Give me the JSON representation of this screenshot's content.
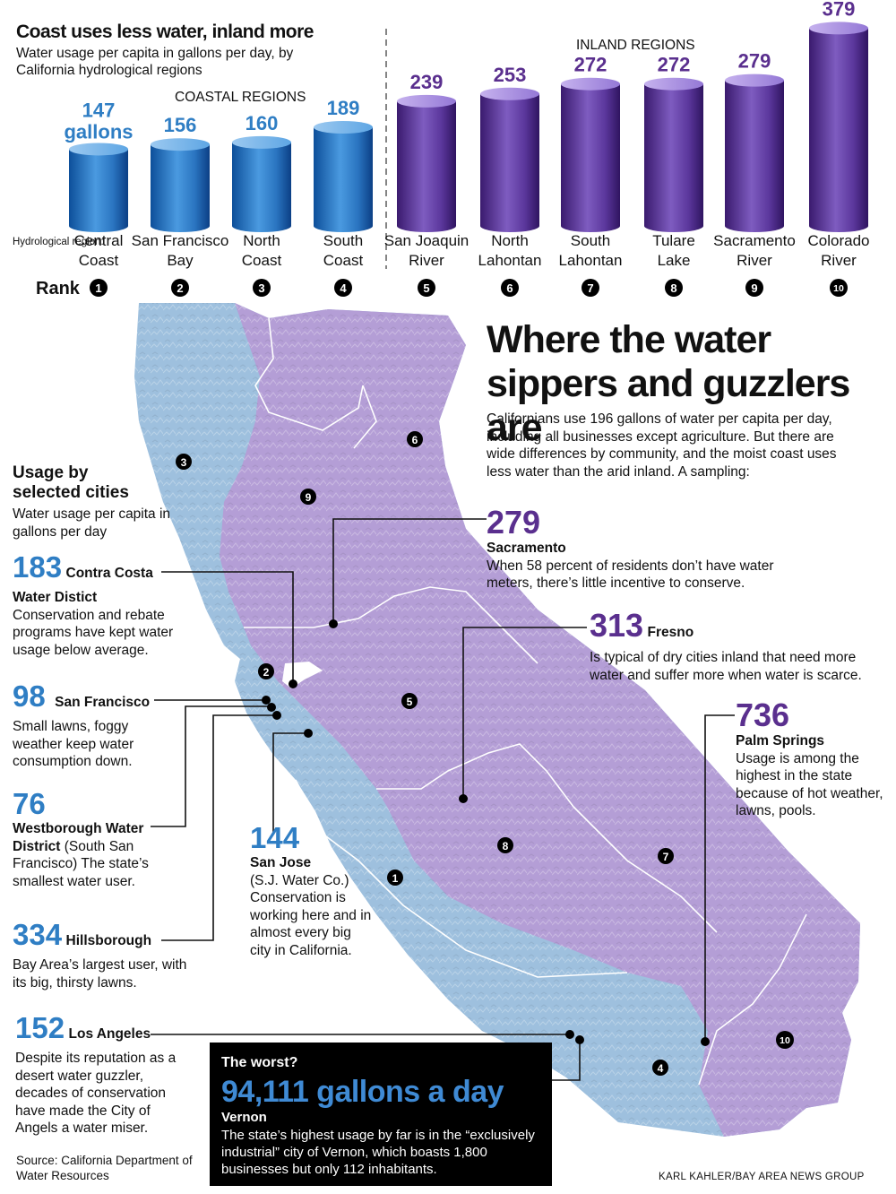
{
  "chart": {
    "title": "Coast uses less water, inland more",
    "subtitle": "Water usage per capita in gallons per day, by California hydrological regions",
    "coastal_label": "COASTAL REGIONS",
    "inland_label": "INLAND REGIONS",
    "axis_label": "Hydrological region:",
    "rank_label": "Rank",
    "unit_label": "gallons"
  },
  "chart_data": {
    "type": "bar",
    "title": "Coast uses less water, inland more",
    "subtitle": "Water usage per capita in gallons per day, by California hydrological regions",
    "categories": [
      "Central Coast",
      "San Francisco Bay",
      "North Coast",
      "South Coast",
      "San Joaquin River",
      "North Lahontan",
      "South Lahontan",
      "Tulare Lake",
      "Sacramento River",
      "Colorado River"
    ],
    "category_lines": [
      [
        "Central",
        "Coast"
      ],
      [
        "San Francisco",
        "Bay"
      ],
      [
        "North",
        "Coast"
      ],
      [
        "South",
        "Coast"
      ],
      [
        "San Joaquin",
        "River"
      ],
      [
        "North",
        "Lahontan"
      ],
      [
        "South",
        "Lahontan"
      ],
      [
        "Tulare",
        "Lake"
      ],
      [
        "Sacramento",
        "River"
      ],
      [
        "Colorado",
        "River"
      ]
    ],
    "values": [
      147,
      156,
      160,
      189,
      239,
      253,
      272,
      272,
      279,
      379
    ],
    "ranks": [
      "1",
      "2",
      "3",
      "4",
      "5",
      "6",
      "7",
      "8",
      "9",
      "10"
    ],
    "groups": [
      "coastal",
      "coastal",
      "coastal",
      "coastal",
      "inland",
      "inland",
      "inland",
      "inland",
      "inland",
      "inland"
    ],
    "colors": {
      "coastal": "#2f7ec4",
      "inland": "#5a2f8e"
    }
  },
  "map": {
    "title": "Where the water sippers and guzzlers are",
    "intro": "Californians use 196 gallons of water per capita per day, including all businesses except agriculture. But there are wide differences by community, and the moist coast uses less water than the arid inland. A sampling:",
    "colors": {
      "coastal": "#9ec0de",
      "inland": "#b49ed6",
      "border": "#ffffff"
    },
    "region_markers": [
      "1",
      "2",
      "3",
      "4",
      "5",
      "6",
      "7",
      "8",
      "9",
      "10"
    ]
  },
  "cities_heading": {
    "title": "Usage by selected cities",
    "subtitle": "Water usage per capita in gallons per day"
  },
  "cities": {
    "sacramento": {
      "value": "279",
      "name": "Sacramento",
      "note": "When 58 percent of residents don’t have water meters, there’s little incentive to conserve."
    },
    "fresno": {
      "value": "313",
      "name": "Fresno",
      "note": "Is typical of dry cities inland that need more water and suffer more when water is scarce."
    },
    "palm_springs": {
      "value": "736",
      "name": "Palm Springs",
      "note": "Usage is among the highest in the state because of hot weather, lawns, pools."
    },
    "contra_costa": {
      "value": "183",
      "name_line1": "Contra Costa",
      "name_line2": "Water Distict",
      "note": "Conservation and rebate programs have kept water usage below average."
    },
    "san_francisco": {
      "value": "98",
      "name": "San Francisco",
      "note": "Small lawns, foggy weather keep water consumption down."
    },
    "westborough": {
      "value": "76",
      "name": "Westborough Water District",
      "note": "(South San Francisco) The state’s smallest water user."
    },
    "hillsborough": {
      "value": "334",
      "name": "Hillsborough",
      "note": "Bay Area’s largest user, with its big, thirsty lawns."
    },
    "san_jose": {
      "value": "144",
      "name": "San Jose",
      "note": "(S.J. Water Co.) Conservation is working here and in almost every big city in California."
    },
    "los_angeles": {
      "value": "152",
      "name": "Los Angeles",
      "note": "Despite its reputation as a desert water guzzler, decades of conservation have made the City of Angels a water miser."
    }
  },
  "worst": {
    "question": "The worst?",
    "value": "94,111 gallons a day",
    "city": "Vernon",
    "note": "The state’s highest usage by far is in the “exclusively industrial” city of Vernon, which boasts 1,800 businesses but only 112 inhabitants."
  },
  "source": "Source: California Department of Water Resources",
  "credit": "KARL KAHLER/BAY AREA NEWS GROUP"
}
